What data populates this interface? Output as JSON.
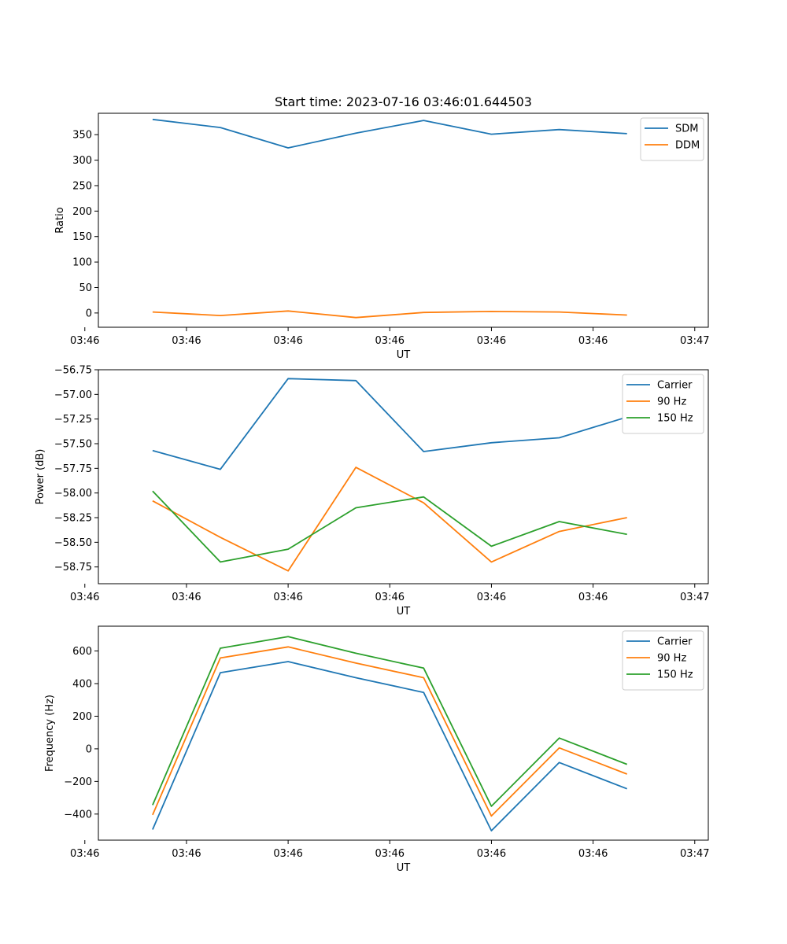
{
  "chart_data": [
    {
      "type": "line",
      "title": "Start time: 2023-07-16 03:46:01.644503",
      "xlabel": "UT",
      "ylabel": "Ratio",
      "x": [
        1,
        2,
        3,
        4,
        5,
        6,
        7,
        8
      ],
      "xlim": [
        0.2,
        9.2
      ],
      "x_ticks": [
        0,
        1.5,
        3,
        4.5,
        6,
        7.5,
        9
      ],
      "x_tick_labels": [
        "03:46",
        "03:46",
        "03:46",
        "03:46",
        "03:46",
        "03:46",
        "03:47"
      ],
      "ylim": [
        -28,
        392
      ],
      "y_ticks": [
        0,
        50,
        100,
        150,
        200,
        250,
        300,
        350
      ],
      "y_tick_labels": [
        "0",
        "50",
        "100",
        "150",
        "200",
        "250",
        "300",
        "350"
      ],
      "legend_position": "top-right",
      "series": [
        {
          "name": "SDM",
          "color": "#1f77b4",
          "values": [
            380,
            364,
            324,
            353,
            378,
            351,
            360,
            352
          ]
        },
        {
          "name": "DDM",
          "color": "#ff7f0e",
          "values": [
            2,
            -5,
            4,
            -9,
            1,
            3,
            2,
            -4
          ]
        }
      ]
    },
    {
      "type": "line",
      "title": "",
      "xlabel": "UT",
      "ylabel": "Power (dB)",
      "x": [
        1,
        2,
        3,
        4,
        5,
        6,
        7,
        8
      ],
      "xlim": [
        0.2,
        9.2
      ],
      "x_ticks": [
        0,
        1.5,
        3,
        4.5,
        6,
        7.5,
        9
      ],
      "x_tick_labels": [
        "03:46",
        "03:46",
        "03:46",
        "03:46",
        "03:46",
        "03:46",
        "03:47"
      ],
      "ylim": [
        -58.92,
        -56.75
      ],
      "y_ticks": [
        -56.75,
        -57.0,
        -57.25,
        -57.5,
        -57.75,
        -58.0,
        -58.25,
        -58.5,
        -58.75
      ],
      "y_tick_labels": [
        "−56.75",
        "−57.00",
        "−57.25",
        "−57.50",
        "−57.75",
        "−58.00",
        "−58.25",
        "−58.50",
        "−58.75"
      ],
      "legend_position": "top-right",
      "series": [
        {
          "name": "Carrier",
          "color": "#1f77b4",
          "values": [
            -57.57,
            -57.76,
            -56.84,
            -56.86,
            -57.58,
            -57.49,
            -57.44,
            -57.23
          ]
        },
        {
          "name": "90 Hz",
          "color": "#ff7f0e",
          "values": [
            -58.08,
            -58.45,
            -58.79,
            -57.74,
            -58.1,
            -58.7,
            -58.39,
            -58.25
          ]
        },
        {
          "name": "150 Hz",
          "color": "#2ca02c",
          "values": [
            -57.98,
            -58.7,
            -58.57,
            -58.15,
            -58.04,
            -58.54,
            -58.29,
            -58.42
          ]
        }
      ]
    },
    {
      "type": "line",
      "title": "",
      "xlabel": "UT",
      "ylabel": "Frequency (Hz)",
      "x": [
        1,
        2,
        3,
        4,
        5,
        6,
        7,
        8
      ],
      "xlim": [
        0.2,
        9.2
      ],
      "x_ticks": [
        0,
        1.5,
        3,
        4.5,
        6,
        7.5,
        9
      ],
      "x_tick_labels": [
        "03:46",
        "03:46",
        "03:46",
        "03:46",
        "03:46",
        "03:46",
        "03:47"
      ],
      "ylim": [
        -560,
        752
      ],
      "y_ticks": [
        -400,
        -200,
        0,
        200,
        400,
        600
      ],
      "y_tick_labels": [
        "−400",
        "−200",
        "0",
        "200",
        "400",
        "600"
      ],
      "legend_position": "top-right",
      "series": [
        {
          "name": "Carrier",
          "color": "#1f77b4",
          "values": [
            -495,
            467,
            535,
            436,
            346,
            -502,
            -84,
            -245
          ]
        },
        {
          "name": "90 Hz",
          "color": "#ff7f0e",
          "values": [
            -405,
            557,
            625,
            526,
            436,
            -412,
            6,
            -155
          ]
        },
        {
          "name": "150 Hz",
          "color": "#2ca02c",
          "values": [
            -345,
            617,
            688,
            586,
            495,
            -352,
            66,
            -95
          ]
        }
      ]
    }
  ]
}
